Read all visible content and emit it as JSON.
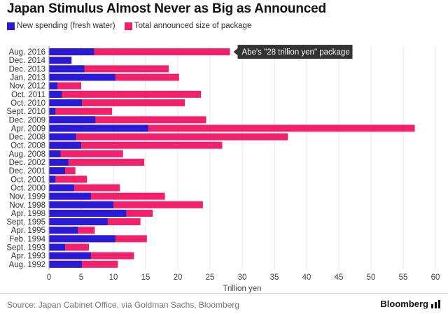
{
  "title": "Japan Stimulus Almost Never as Big as Announced",
  "legend": {
    "new_spending": "New spending (fresh water)",
    "total": "Total announced size of package"
  },
  "colors": {
    "new_spending": "#2a1ad6",
    "total": "#f2216b"
  },
  "annotation": "Abe's \"28 trillion yen\" package",
  "source": "Source: Japan Cabinet Office, via Goldman Sachs, Bloomberg",
  "brand": "Bloomberg",
  "chart_data": {
    "type": "bar",
    "orientation": "horizontal",
    "xlabel": "Trillion yen",
    "xlim": [
      0,
      60
    ],
    "xticks": [
      0,
      5,
      10,
      15,
      20,
      25,
      30,
      35,
      40,
      45,
      50,
      55,
      60
    ],
    "categories": [
      "Aug. 2016",
      "Dec. 2014",
      "Dec. 2013",
      "Jan. 2013",
      "Nov. 2012",
      "Oct. 2011",
      "Oct. 2010",
      "Sept. 2010",
      "Dec. 2009",
      "Apr. 2009",
      "Dec. 2008",
      "Oct. 2008",
      "Aug. 2008",
      "Dec. 2002",
      "Dec. 2001",
      "Oct. 2001",
      "Oct. 2000",
      "Nov. 1999",
      "Nov. 1998",
      "Apr. 1998",
      "Sept. 1995",
      "Apr. 1995",
      "Feb. 1994",
      "Sept. 1993",
      "Apr. 1993",
      "Aug. 1992"
    ],
    "series": [
      {
        "name": "New spending (fresh water)",
        "values": [
          7.0,
          3.5,
          5.5,
          10.3,
          1.3,
          2.0,
          5.1,
          1.0,
          7.2,
          15.4,
          4.2,
          5.0,
          1.8,
          3.0,
          2.5,
          1.0,
          3.9,
          6.5,
          10.0,
          12.0,
          9.1,
          4.5,
          10.3,
          2.5,
          6.5,
          5.1
        ]
      },
      {
        "name": "Total announced size of package",
        "values": [
          28.1,
          3.5,
          18.6,
          20.2,
          5.0,
          23.6,
          21.1,
          9.8,
          24.4,
          56.8,
          37.1,
          26.9,
          11.5,
          14.8,
          4.1,
          5.9,
          11.0,
          18.0,
          23.9,
          16.1,
          14.2,
          7.1,
          15.2,
          6.2,
          13.2,
          10.7
        ]
      }
    ]
  }
}
